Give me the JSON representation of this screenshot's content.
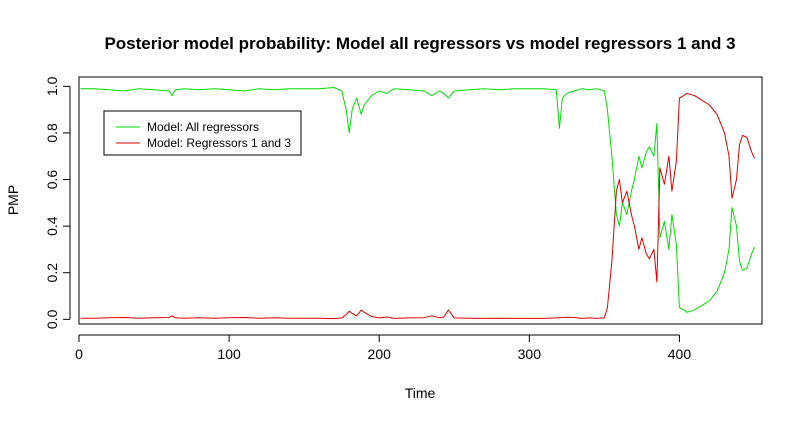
{
  "chart_data": {
    "type": "line",
    "title": "Posterior model probability: Model all regressors vs model regressors 1 and 3",
    "xlabel": "Time",
    "ylabel": "PMP",
    "xlim": [
      0,
      455
    ],
    "ylim": [
      -0.02,
      1.04
    ],
    "xticks": [
      0,
      100,
      200,
      300,
      400
    ],
    "xtick_labels": [
      "0",
      "100",
      "200",
      "300",
      "400"
    ],
    "yticks": [
      0.0,
      0.2,
      0.4,
      0.6,
      0.8,
      1.0
    ],
    "ytick_labels": [
      "0.0",
      "0.2",
      "0.4",
      "0.6",
      "0.8",
      "1.0"
    ],
    "grid": false,
    "legend_position": "top-left",
    "series": [
      {
        "name": "Model: All regressors",
        "color": "#00dd00",
        "x": [
          1,
          10,
          20,
          30,
          40,
          50,
          60,
          62,
          64,
          70,
          80,
          90,
          100,
          110,
          120,
          130,
          140,
          150,
          160,
          170,
          175,
          178,
          180,
          182,
          185,
          188,
          190,
          195,
          200,
          205,
          210,
          220,
          230,
          235,
          240,
          243,
          246,
          250,
          260,
          270,
          280,
          290,
          300,
          310,
          318,
          320,
          322,
          325,
          330,
          335,
          340,
          345,
          350,
          352,
          355,
          358,
          360,
          362,
          365,
          368,
          370,
          373,
          375,
          378,
          380,
          383,
          385,
          387,
          390,
          393,
          395,
          398,
          400,
          403,
          405,
          410,
          415,
          420,
          425,
          430,
          433,
          435,
          438,
          440,
          442,
          445,
          448,
          450
        ],
        "values": [
          0.99,
          0.99,
          0.985,
          0.98,
          0.99,
          0.985,
          0.98,
          0.96,
          0.985,
          0.99,
          0.985,
          0.99,
          0.985,
          0.98,
          0.99,
          0.985,
          0.99,
          0.99,
          0.99,
          0.995,
          0.98,
          0.9,
          0.8,
          0.9,
          0.95,
          0.88,
          0.92,
          0.96,
          0.98,
          0.97,
          0.99,
          0.985,
          0.98,
          0.96,
          0.98,
          0.97,
          0.95,
          0.98,
          0.985,
          0.99,
          0.985,
          0.99,
          0.99,
          0.99,
          0.985,
          0.82,
          0.95,
          0.97,
          0.98,
          0.99,
          0.985,
          0.99,
          0.98,
          0.9,
          0.7,
          0.45,
          0.4,
          0.5,
          0.45,
          0.55,
          0.6,
          0.7,
          0.65,
          0.72,
          0.74,
          0.7,
          0.84,
          0.35,
          0.42,
          0.3,
          0.45,
          0.32,
          0.05,
          0.04,
          0.03,
          0.04,
          0.06,
          0.08,
          0.12,
          0.2,
          0.3,
          0.48,
          0.4,
          0.25,
          0.21,
          0.22,
          0.28,
          0.31
        ]
      },
      {
        "name": "Model: Regressors 1 and 3",
        "color": "#dd0000",
        "x": [
          1,
          10,
          20,
          30,
          40,
          50,
          60,
          62,
          64,
          70,
          80,
          90,
          100,
          110,
          120,
          130,
          140,
          150,
          160,
          170,
          175,
          178,
          180,
          182,
          185,
          188,
          190,
          195,
          200,
          205,
          210,
          220,
          230,
          235,
          240,
          243,
          246,
          250,
          260,
          270,
          280,
          290,
          300,
          310,
          318,
          320,
          322,
          325,
          330,
          335,
          340,
          345,
          350,
          352,
          355,
          358,
          360,
          362,
          365,
          368,
          370,
          373,
          375,
          378,
          380,
          383,
          385,
          387,
          390,
          393,
          395,
          398,
          400,
          403,
          405,
          410,
          415,
          420,
          425,
          430,
          433,
          435,
          438,
          440,
          442,
          445,
          448,
          450
        ],
        "values": [
          0.005,
          0.005,
          0.007,
          0.008,
          0.005,
          0.007,
          0.008,
          0.015,
          0.007,
          0.005,
          0.007,
          0.005,
          0.007,
          0.008,
          0.005,
          0.007,
          0.005,
          0.005,
          0.005,
          0.003,
          0.006,
          0.02,
          0.035,
          0.025,
          0.015,
          0.04,
          0.03,
          0.012,
          0.006,
          0.01,
          0.004,
          0.006,
          0.007,
          0.015,
          0.007,
          0.01,
          0.04,
          0.006,
          0.005,
          0.004,
          0.005,
          0.004,
          0.004,
          0.004,
          0.006,
          0.007,
          0.008,
          0.009,
          0.008,
          0.004,
          0.006,
          0.004,
          0.007,
          0.05,
          0.25,
          0.55,
          0.6,
          0.5,
          0.55,
          0.45,
          0.4,
          0.3,
          0.35,
          0.28,
          0.26,
          0.3,
          0.16,
          0.65,
          0.58,
          0.7,
          0.55,
          0.68,
          0.95,
          0.96,
          0.97,
          0.96,
          0.94,
          0.92,
          0.88,
          0.8,
          0.7,
          0.52,
          0.6,
          0.75,
          0.79,
          0.78,
          0.72,
          0.69
        ]
      }
    ]
  }
}
